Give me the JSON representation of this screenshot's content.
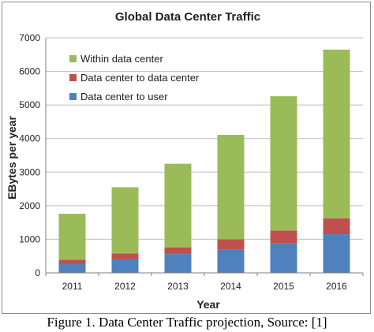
{
  "chart_data": {
    "type": "bar",
    "stacked": true,
    "title": "Global Data Center Traffic",
    "xlabel": "Year",
    "ylabel": "EBytes per year",
    "categories": [
      "2011",
      "2012",
      "2013",
      "2014",
      "2015",
      "2016"
    ],
    "ylim": [
      0,
      7000
    ],
    "yticks": [
      0,
      1000,
      2000,
      3000,
      4000,
      5000,
      6000,
      7000
    ],
    "grid": true,
    "legend_position": "top-left",
    "series": [
      {
        "name": "Data center to user",
        "color": "#4f81bd",
        "values": [
          270,
          400,
          560,
          690,
          890,
          1150
        ]
      },
      {
        "name": "Data center to data center",
        "color": "#c0504d",
        "values": [
          120,
          180,
          200,
          310,
          370,
          470
        ]
      },
      {
        "name": "Within data center",
        "color": "#9bbb59",
        "values": [
          1370,
          1970,
          2490,
          3110,
          4000,
          5030
        ]
      }
    ],
    "legend_order": [
      2,
      1,
      0
    ]
  },
  "caption": "Figure 1. Data Center Traffic projection, Source: [1]"
}
